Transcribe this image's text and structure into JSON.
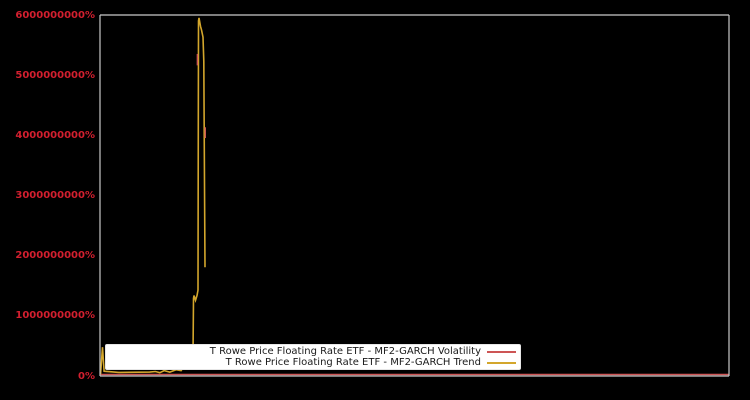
{
  "window": {
    "background_color": "#000000",
    "spine_color": "#c9c9c9"
  },
  "chart_data": {
    "type": "line",
    "title": "",
    "xlabel": "",
    "ylabel": "",
    "grid": false,
    "x_axis": {
      "tick_labels_visible": false,
      "range": [
        0,
        1
      ]
    },
    "y_axis": {
      "unit": "percent",
      "range": [
        0,
        6000000000
      ],
      "tick_values": [
        0,
        1000000000,
        2000000000,
        3000000000,
        4000000000,
        5000000000,
        6000000000
      ],
      "tick_labels": [
        "0%",
        "1000000000%",
        "2000000000%",
        "3000000000%",
        "4000000000%",
        "5000000000%",
        "6000000000%"
      ],
      "tick_color": "#d21f2f"
    },
    "legend": {
      "position": "lower-center-inside",
      "background": "#ffffff",
      "marker_side": "right"
    },
    "series": [
      {
        "name": "T Rowe Price Floating Rate ETF - MF2-GARCH Volatility",
        "color": "#cd5555",
        "points": [
          {
            "x": 0.0,
            "y": 25000000
          },
          {
            "x": 1.0,
            "y": 25000000
          }
        ],
        "note": "flat near 0% across full range; its spike is occluded behind the Trend spike"
      },
      {
        "name": "T Rowe Price Floating Rate ETF - MF2-GARCH Trend",
        "color": "#d3a62c",
        "points": [
          {
            "x": 0.001,
            "y": 30000000
          },
          {
            "x": 0.004,
            "y": 480000000
          },
          {
            "x": 0.0065,
            "y": 80000000
          },
          {
            "x": 0.03,
            "y": 60000000
          },
          {
            "x": 0.079,
            "y": 65000000
          },
          {
            "x": 0.088,
            "y": 75000000
          },
          {
            "x": 0.095,
            "y": 55000000
          },
          {
            "x": 0.102,
            "y": 90000000
          },
          {
            "x": 0.111,
            "y": 65000000
          },
          {
            "x": 0.121,
            "y": 105000000
          },
          {
            "x": 0.129,
            "y": 90000000
          },
          {
            "x": 0.14,
            "y": 265000000
          },
          {
            "x": 0.148,
            "y": 515000000
          },
          {
            "x": 0.1487,
            "y": 1290000000
          },
          {
            "x": 0.1495,
            "y": 1340000000
          },
          {
            "x": 0.1518,
            "y": 1260000000
          },
          {
            "x": 0.1542,
            "y": 1340000000
          },
          {
            "x": 0.1558,
            "y": 1430000000
          },
          {
            "x": 0.1566,
            "y": 5910000000
          },
          {
            "x": 0.1574,
            "y": 5960000000
          },
          {
            "x": 0.1598,
            "y": 5820000000
          },
          {
            "x": 0.1614,
            "y": 5760000000
          },
          {
            "x": 0.1638,
            "y": 5640000000
          },
          {
            "x": 0.1651,
            "y": 5240000000
          },
          {
            "x": 0.1657,
            "y": 4080000000
          },
          {
            "x": 0.1663,
            "y": 2920000000
          },
          {
            "x": 0.167,
            "y": 1810000000
          }
        ]
      }
    ],
    "volatility_peek_segments": [
      {
        "x": 0.1548,
        "y1": 5170000000,
        "y2": 5360000000
      },
      {
        "x": 0.1674,
        "y1": 3960000000,
        "y2": 4140000000
      }
    ]
  }
}
